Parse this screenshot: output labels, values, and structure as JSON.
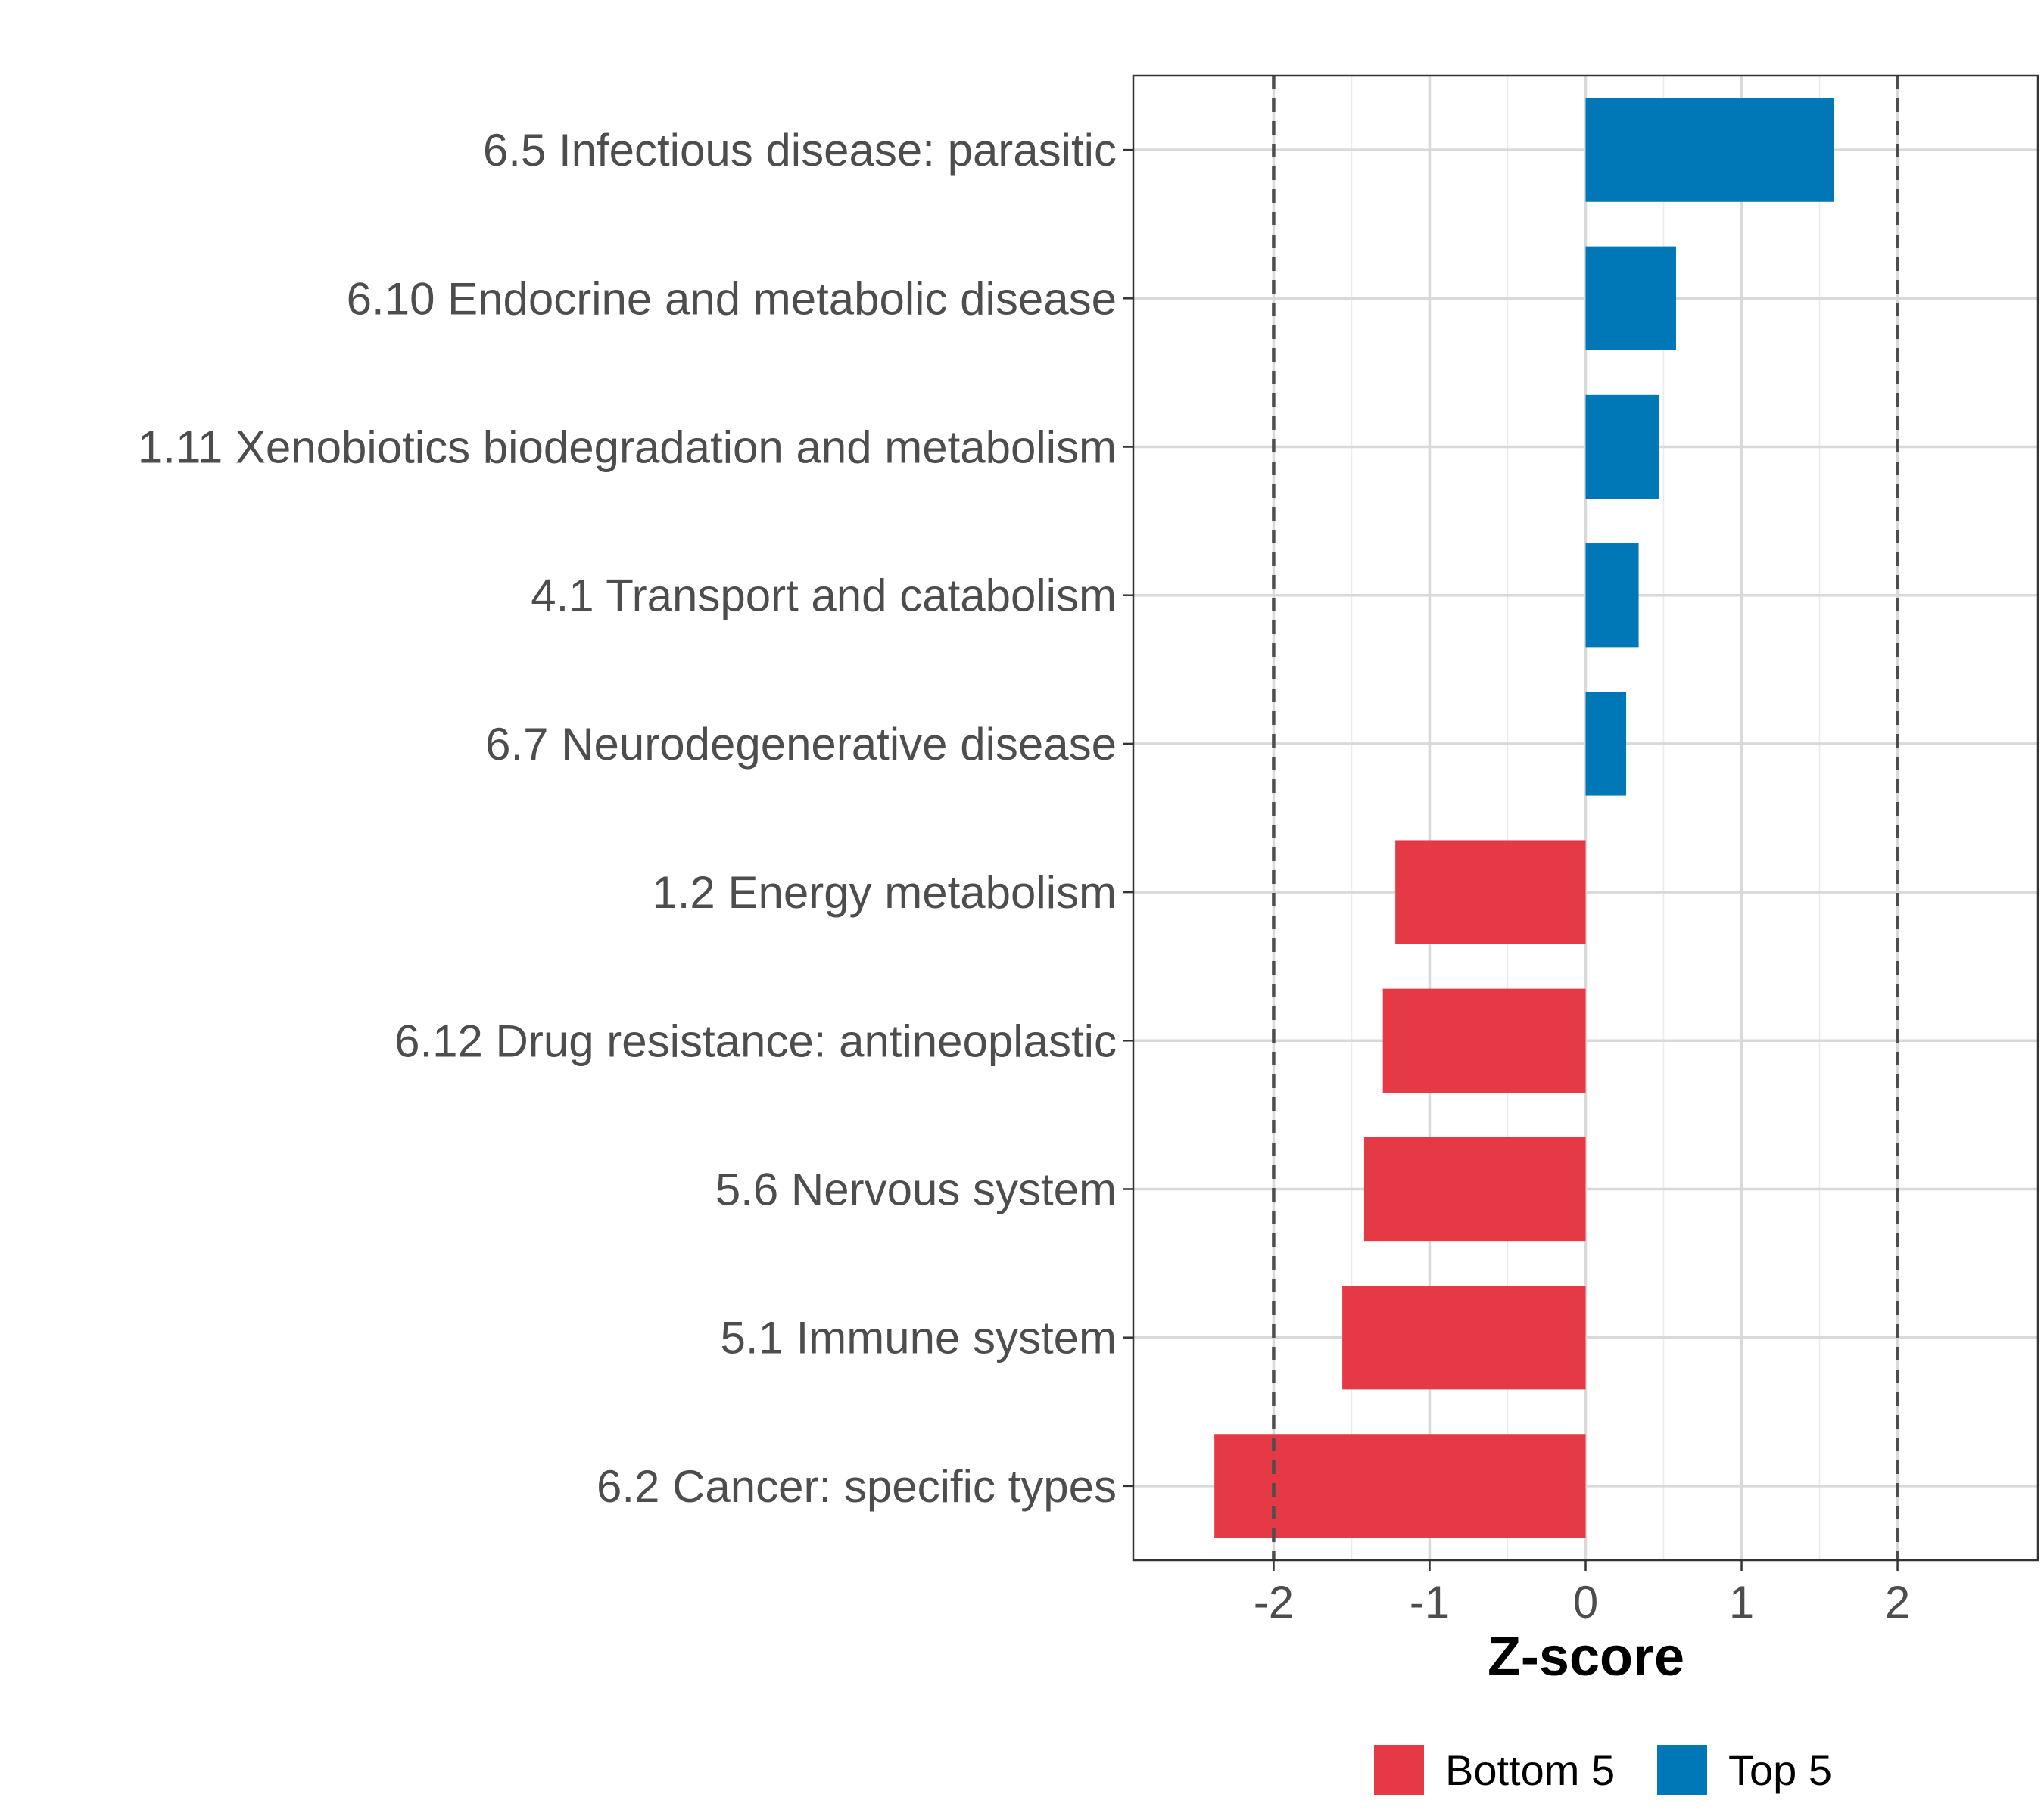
{
  "chart_data": {
    "type": "bar",
    "orientation": "horizontal",
    "title": "",
    "xlabel": "Z-score",
    "ylabel": "",
    "xlim": [
      -2.9,
      2.9
    ],
    "x_ticks": [
      -2,
      -1,
      0,
      1,
      2
    ],
    "x_tick_labels": [
      "-2",
      "-1",
      "0",
      "1",
      "2"
    ],
    "reference_lines": [
      -2,
      2
    ],
    "grid": true,
    "legend_position": "bottom",
    "categories": [
      "6.5 Infectious disease: parasitic",
      "6.10 Endocrine and metabolic disease",
      "1.11 Xenobiotics biodegradation and metabolism",
      "4.1 Transport and catabolism",
      "6.7 Neurodegenerative disease",
      "1.2 Energy metabolism",
      "6.12 Drug resistance: antineoplastic",
      "5.6 Nervous system",
      "5.1 Immune system",
      "6.2 Cancer: specific types"
    ],
    "values": [
      1.59,
      0.58,
      0.47,
      0.34,
      0.26,
      -1.22,
      -1.3,
      -1.42,
      -1.56,
      -2.38
    ],
    "groups": [
      "Top 5",
      "Top 5",
      "Top 5",
      "Top 5",
      "Top 5",
      "Bottom 5",
      "Bottom 5",
      "Bottom 5",
      "Bottom 5",
      "Bottom 5"
    ],
    "legend": [
      {
        "name": "Bottom 5",
        "color": "#e63946"
      },
      {
        "name": "Top 5",
        "color": "#0077b6"
      }
    ]
  }
}
